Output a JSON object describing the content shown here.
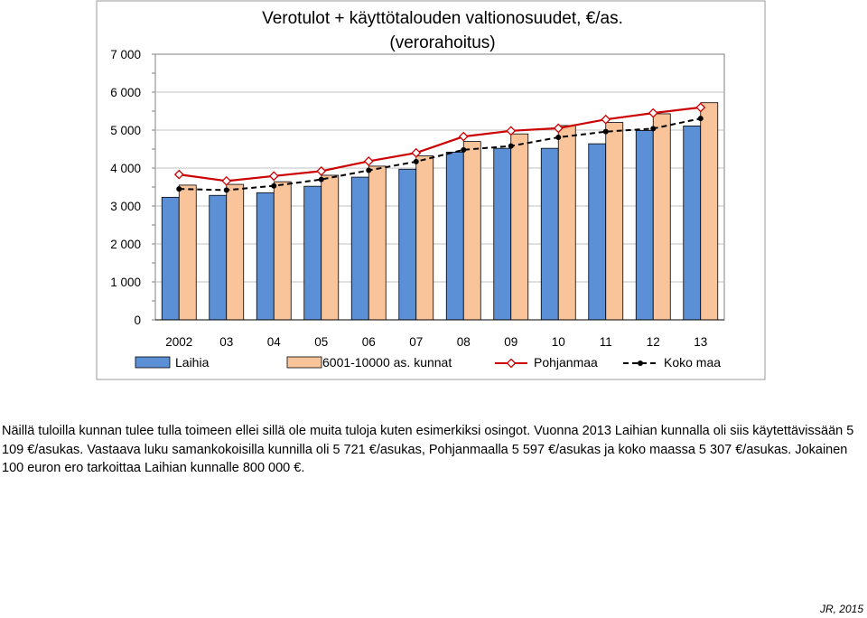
{
  "chart_data": {
    "type": "bar",
    "title": "Verotulot + käyttötalouden valtionosuudet, €/as.",
    "subtitle": "(verorahoitus)",
    "categories": [
      "2002",
      "03",
      "04",
      "05",
      "06",
      "07",
      "08",
      "09",
      "10",
      "11",
      "12",
      "13"
    ],
    "ylim": [
      0,
      7000
    ],
    "yticks": [
      "0",
      "1 000",
      "2 000",
      "3 000",
      "4 000",
      "5 000",
      "6 000",
      "7 000"
    ],
    "grid": true,
    "legend_position": "bottom",
    "series": [
      {
        "name": "Laihia",
        "kind": "bar",
        "color": "#5b8fd6",
        "values": [
          3230,
          3280,
          3350,
          3520,
          3760,
          3970,
          4420,
          4520,
          4520,
          4640,
          4990,
          5109
        ]
      },
      {
        "name": "6001-10000 as. kunnat",
        "kind": "bar",
        "color": "#f9c49a",
        "values": [
          3550,
          3570,
          3640,
          3810,
          4050,
          4320,
          4700,
          4900,
          5120,
          5200,
          5430,
          5721
        ]
      },
      {
        "name": "Pohjanmaa",
        "kind": "line",
        "color": "#cc0000",
        "values": [
          3830,
          3660,
          3790,
          3920,
          4180,
          4400,
          4830,
          4980,
          5050,
          5280,
          5450,
          5597
        ]
      },
      {
        "name": "Koko maa",
        "kind": "dashed-line",
        "color": "#000000",
        "values": [
          3450,
          3420,
          3530,
          3700,
          3940,
          4170,
          4480,
          4580,
          4810,
          4960,
          5040,
          5307
        ]
      }
    ]
  },
  "caption": "Näillä tuloilla kunnan tulee tulla toimeen ellei sillä ole muita tuloja kuten esimerkiksi osingot. Vuonna 2013 Laihian kunnalla oli siis käytettävissään 5 109 €/asukas. Vastaava luku samankokoisilla kunnilla oli 5 721 €/asukas, Pohjanmaalla 5 597 €/asukas ja koko maassa 5 307 €/asukas. Jokainen 100 euron ero tarkoittaa Laihian kunnalle 800 000 €.",
  "signature": "JR, 2015"
}
